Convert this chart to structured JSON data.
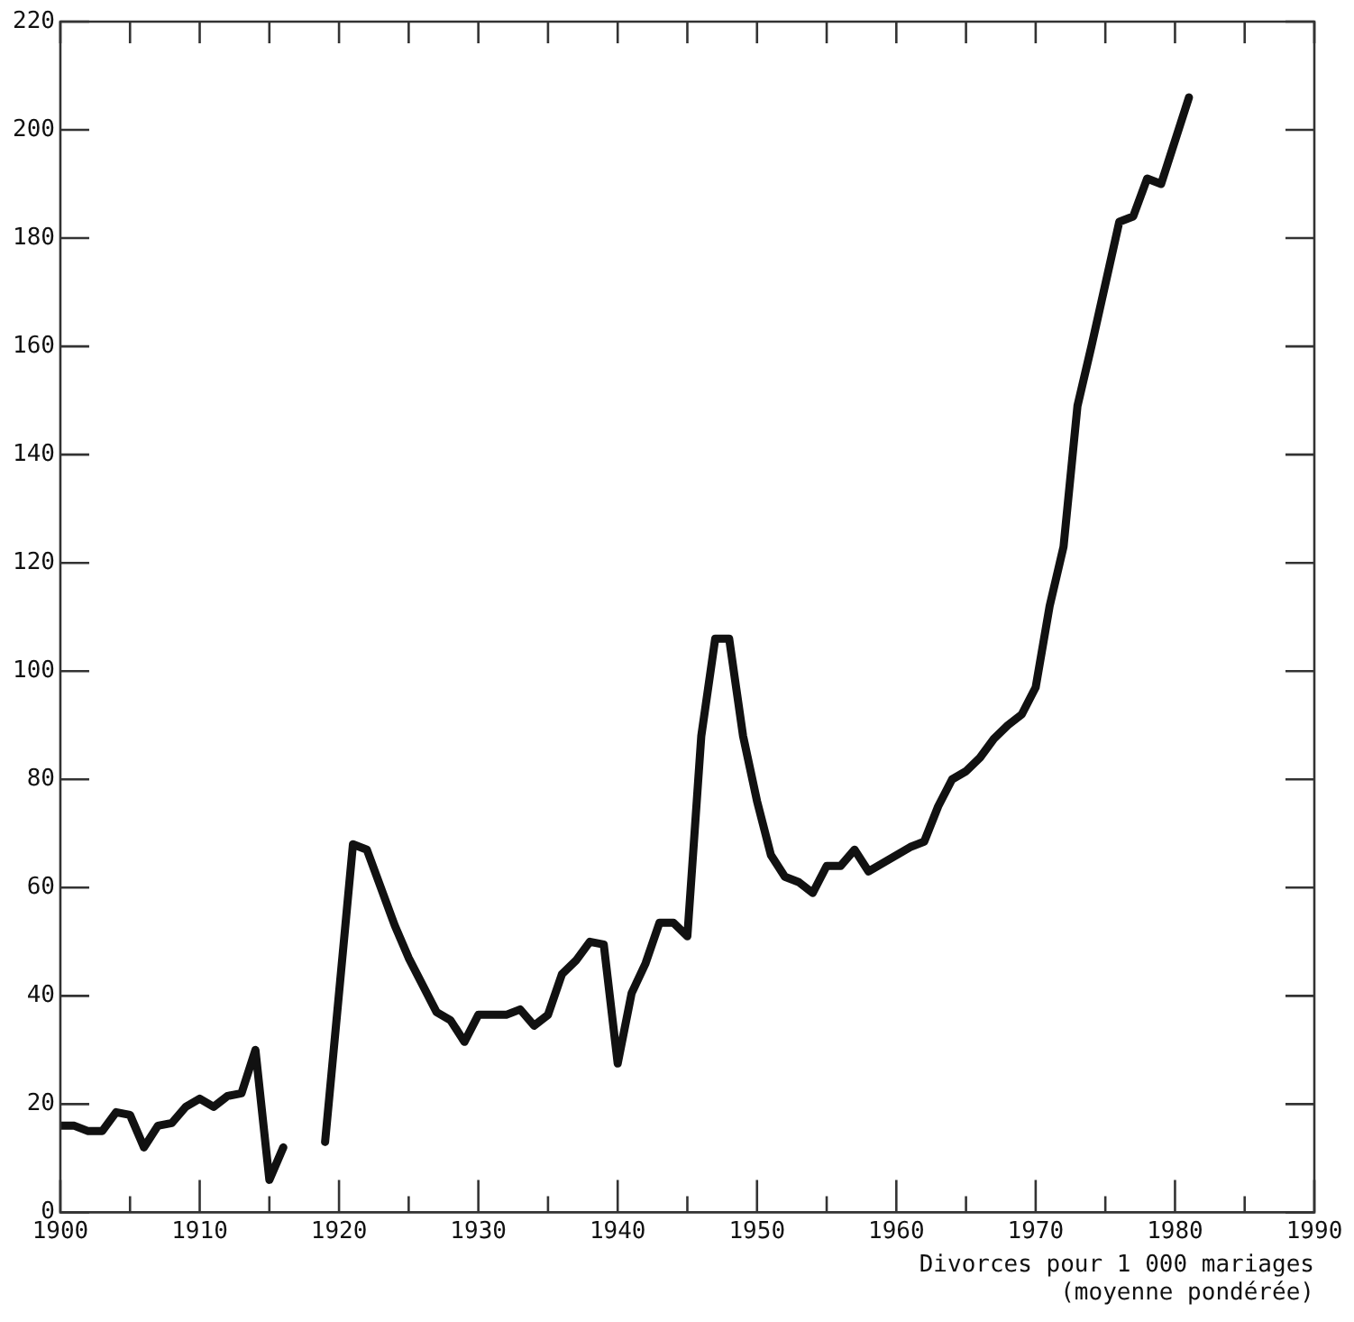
{
  "chart_data": {
    "type": "line",
    "xlabel": "Divorces pour 1 000 mariages\n(moyenne pondérée)",
    "x": [
      1900,
      1901,
      1902,
      1903,
      1904,
      1905,
      1906,
      1907,
      1908,
      1909,
      1910,
      1911,
      1912,
      1913,
      1914,
      1915,
      1916,
      1917,
      1918,
      1919,
      1921,
      1922,
      1923,
      1924,
      1925,
      1926,
      1927,
      1928,
      1929,
      1930,
      1931,
      1932,
      1933,
      1934,
      1935,
      1936,
      1937,
      1938,
      1939,
      1940,
      1941,
      1942,
      1943,
      1944,
      1945,
      1946,
      1947,
      1948,
      1949,
      1950,
      1951,
      1952,
      1953,
      1954,
      1955,
      1956,
      1957,
      1958,
      1959,
      1960,
      1961,
      1962,
      1963,
      1964,
      1965,
      1966,
      1967,
      1968,
      1969,
      1970,
      1971,
      1972,
      1973,
      1974,
      1976,
      1977,
      1978,
      1979,
      1981
    ],
    "series": [
      {
        "color": "#111111",
        "values": [
          16,
          16,
          15,
          15,
          18.5,
          18,
          12,
          16,
          16.5,
          19.5,
          21,
          19.5,
          21.5,
          22,
          30,
          6,
          12,
          null,
          null,
          13,
          68,
          67,
          60,
          53,
          47,
          42,
          37,
          35.5,
          31.5,
          36.5,
          36.5,
          36.5,
          37.5,
          34.5,
          36.5,
          44,
          46.5,
          50,
          49.5,
          27.5,
          40.5,
          46,
          53.5,
          53.5,
          51,
          88,
          106,
          106,
          88,
          76,
          66,
          62,
          61,
          59,
          64,
          64,
          67,
          63,
          64.5,
          66,
          67.5,
          68.5,
          75,
          80,
          81.5,
          84,
          87.5,
          90,
          92,
          97,
          112,
          123,
          149,
          160,
          183,
          184,
          191,
          190,
          206
        ]
      }
    ],
    "xlim": [
      1900,
      1990
    ],
    "xticks": [
      1900,
      {
        "value": 1905,
        "label": null
      },
      1910,
      {
        "value": 1915,
        "label": null
      },
      1920,
      {
        "value": 1925,
        "label": null
      },
      1930,
      {
        "value": 1935,
        "label": null
      },
      1940,
      {
        "value": 1945,
        "label": null
      },
      1950,
      {
        "value": 1955,
        "label": null
      },
      1960,
      {
        "value": 1965,
        "label": null
      },
      1970,
      {
        "value": 1975,
        "label": null
      },
      1980,
      {
        "value": 1985,
        "label": null
      },
      1990
    ],
    "ylim": [
      0,
      220
    ],
    "yticks": [
      0,
      20,
      40,
      60,
      80,
      100,
      120,
      140,
      160,
      180,
      200,
      220
    ],
    "grid": false,
    "legend": false,
    "marker": "none",
    "line_style": "solid"
  }
}
